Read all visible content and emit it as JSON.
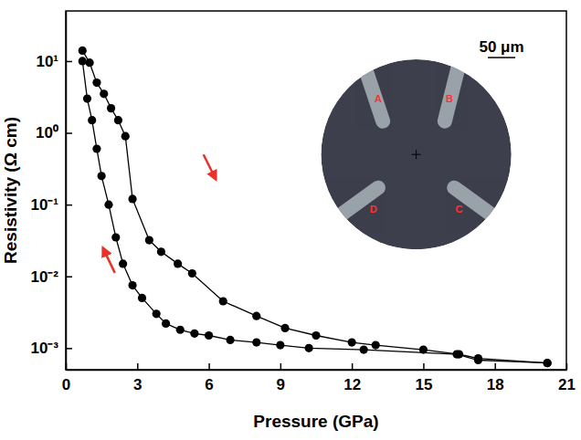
{
  "chart_data": {
    "type": "line",
    "x_label": "Pressure (GPa)",
    "y_label": "Resistivity (Ω cm)",
    "log": "y",
    "grid": false,
    "xlim": [
      0,
      21
    ],
    "xticks": [
      0,
      3,
      6,
      9,
      12,
      15,
      18,
      21
    ],
    "ylim": [
      0.0005,
      50
    ],
    "yticks": [
      {
        "value": 0.001,
        "label": "10⁻³"
      },
      {
        "value": 0.01,
        "label": "10⁻²"
      },
      {
        "value": 0.1,
        "label": "10⁻¹"
      },
      {
        "value": 1,
        "label": "10⁰"
      },
      {
        "value": 10,
        "label": "10¹"
      }
    ],
    "series": [
      {
        "color": "#000000",
        "marker": "circle",
        "line_style": "solid",
        "x": [
          0.7,
          1.0,
          1.3,
          1.6,
          1.9,
          2.2,
          2.5,
          2.8,
          3.5,
          4.0,
          4.7,
          5.3,
          6.6,
          8.0,
          9.2,
          10.5,
          12.0,
          13.0,
          15.0,
          16.5,
          17.3,
          20.2
        ],
        "values": [
          14,
          9.5,
          5,
          3.5,
          2.2,
          1.5,
          0.9,
          0.12,
          0.032,
          0.022,
          0.015,
          0.011,
          0.0045,
          0.0028,
          0.0019,
          0.0015,
          0.0012,
          0.0011,
          0.00095,
          0.00082,
          0.00072,
          0.00062
        ]
      },
      {
        "color": "#000000",
        "marker": "circle",
        "line_style": "solid",
        "x": [
          20.2,
          17.3,
          16.4,
          12.5,
          10.2,
          9.0,
          8.0,
          6.9,
          6.0,
          5.4,
          4.8,
          4.2,
          3.8,
          3.2,
          2.8,
          2.4,
          2.1,
          1.8,
          1.5,
          1.3,
          1.1,
          0.9,
          0.7
        ],
        "values": [
          0.00062,
          0.00068,
          0.00082,
          0.00095,
          0.001,
          0.0011,
          0.0012,
          0.0013,
          0.0015,
          0.0016,
          0.0018,
          0.0022,
          0.003,
          0.005,
          0.0075,
          0.015,
          0.035,
          0.1,
          0.25,
          0.6,
          1.5,
          3,
          10
        ]
      }
    ],
    "annotations": [
      "50 μm",
      "A",
      "B",
      "C",
      "D"
    ]
  }
}
